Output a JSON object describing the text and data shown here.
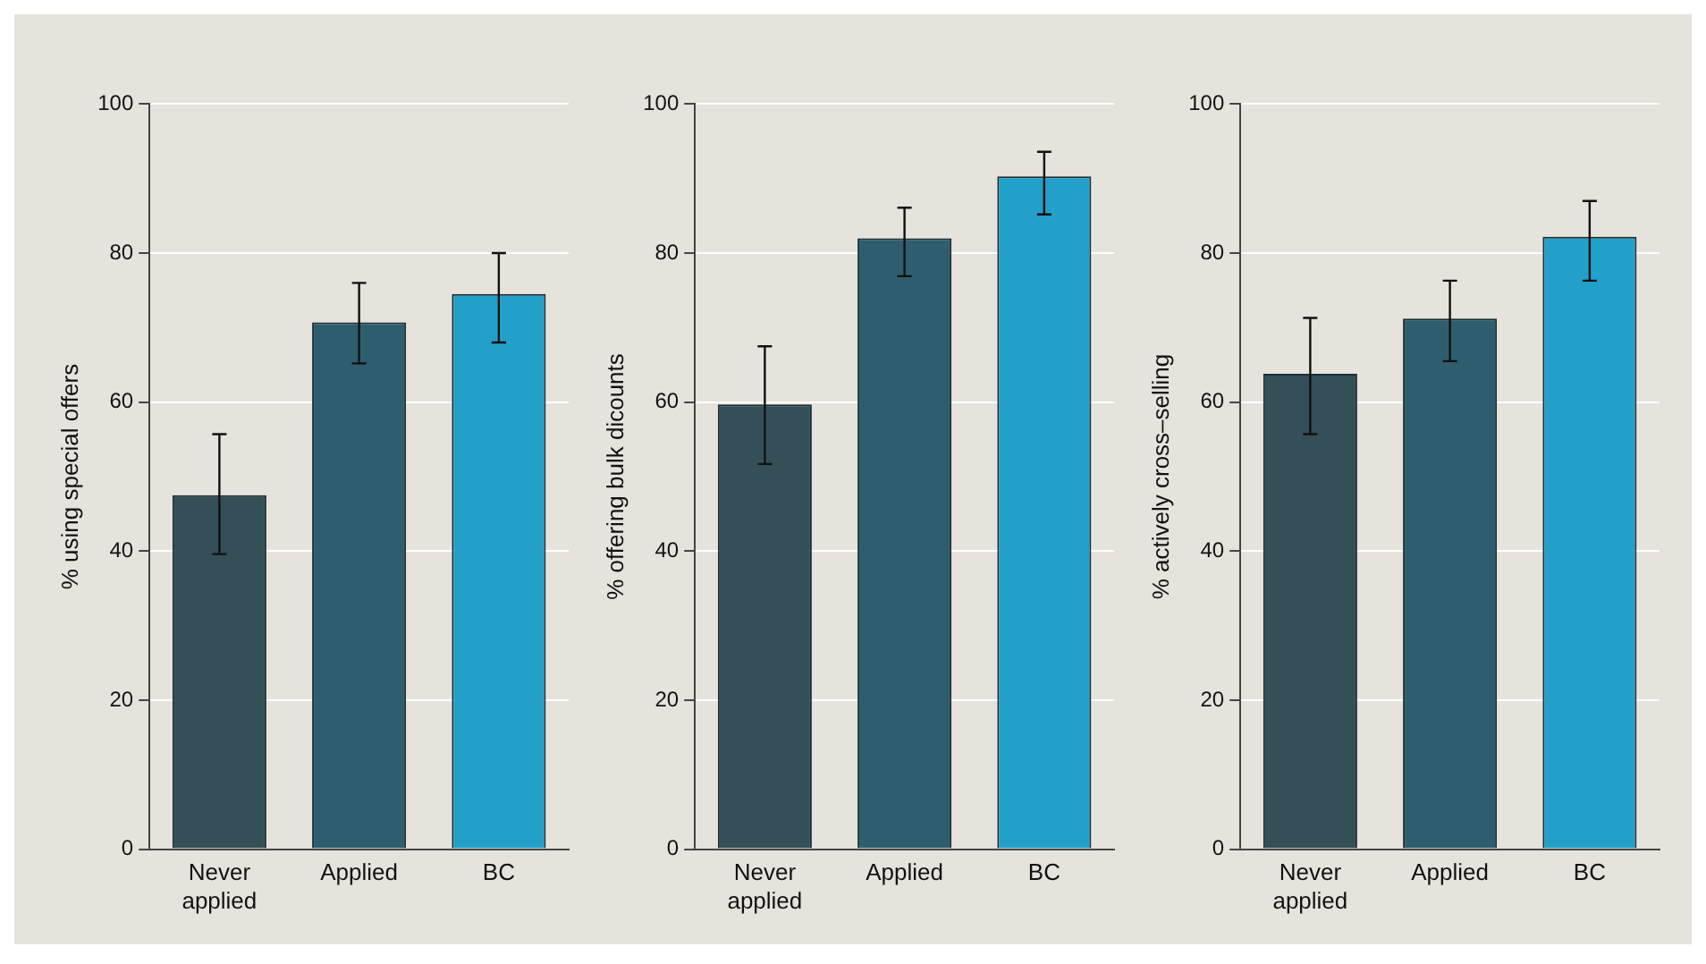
{
  "chart_data": [
    {
      "type": "bar",
      "ylabel": "% using special offers",
      "categories": [
        "Never applied",
        "Applied",
        "BC"
      ],
      "values": [
        47.5,
        70.7,
        74.5
      ],
      "colors": [
        "#344f57",
        "#2e5e6e",
        "#23a0c9"
      ],
      "errors": [
        [
          39.6,
          55.7
        ],
        [
          65.2,
          76.0
        ],
        [
          68.0,
          80.0
        ]
      ],
      "ylim": [
        0,
        100
      ],
      "yticks": [
        0,
        20,
        40,
        60,
        80,
        100
      ],
      "grid": "y",
      "legend": false
    },
    {
      "type": "bar",
      "ylabel": "% offering bulk dicounts",
      "categories": [
        "Never applied",
        "Applied",
        "BC"
      ],
      "values": [
        59.7,
        82.0,
        90.3
      ],
      "colors": [
        "#344f57",
        "#2e5e6e",
        "#23a0c9"
      ],
      "errors": [
        [
          51.7,
          67.5
        ],
        [
          76.9,
          86.1
        ],
        [
          85.2,
          93.6
        ]
      ],
      "ylim": [
        0,
        100
      ],
      "yticks": [
        0,
        20,
        40,
        60,
        80,
        100
      ],
      "grid": "y",
      "legend": false
    },
    {
      "type": "bar",
      "ylabel": "% actively cross–selling",
      "categories": [
        "Never applied",
        "Applied",
        "BC"
      ],
      "values": [
        63.8,
        71.2,
        82.2
      ],
      "colors": [
        "#344f57",
        "#2e5e6e",
        "#23a0c9"
      ],
      "errors": [
        [
          55.7,
          71.3
        ],
        [
          65.5,
          76.3
        ],
        [
          76.3,
          87.0
        ]
      ],
      "ylim": [
        0,
        100
      ],
      "yticks": [
        0,
        20,
        40,
        60,
        80,
        100
      ],
      "grid": "y",
      "legend": false
    }
  ]
}
